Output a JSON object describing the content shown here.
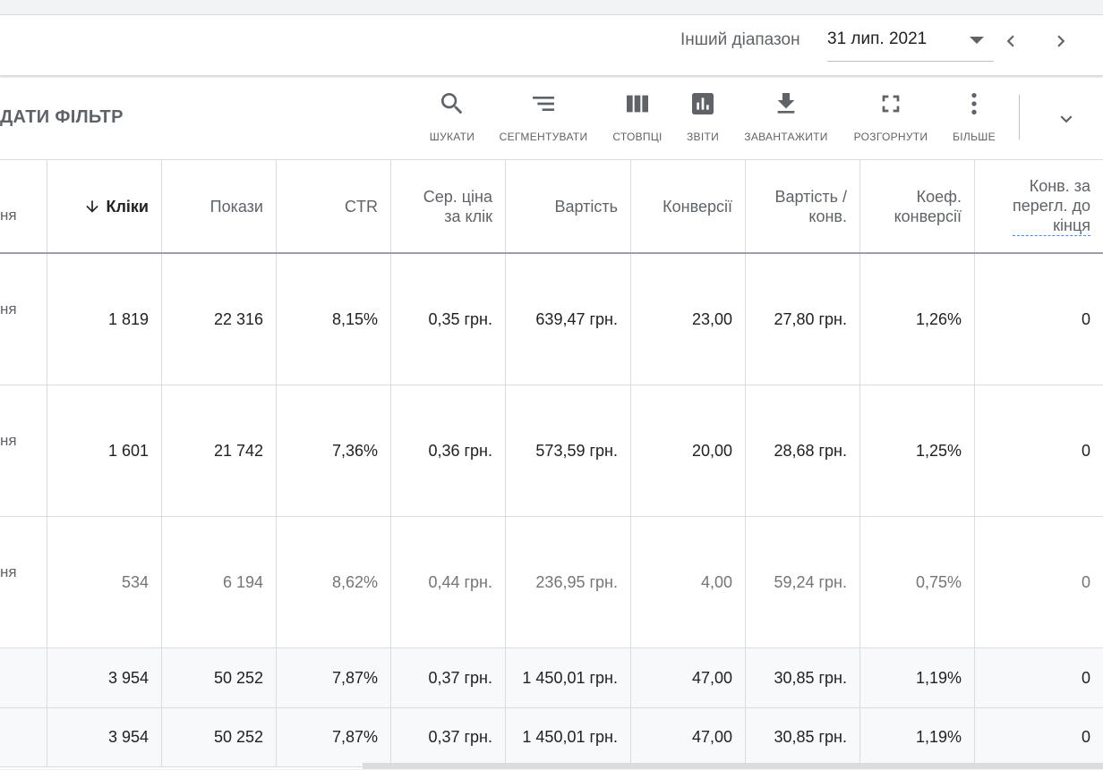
{
  "datebar": {
    "range_label": "Інший діапазон",
    "date_value": "31 лип. 2021"
  },
  "toolbar": {
    "filter_label": "ДАТИ ФІЛЬТР",
    "search": "ШУКАТИ",
    "segment": "СЕГМЕНТУВАТИ",
    "columns": "СТОВПЦІ",
    "reports": "ЗВІТИ",
    "download": "ЗАВАНТАЖИТИ",
    "expand": "РОЗГОРНУТИ",
    "more": "БІЛЬШЕ"
  },
  "table": {
    "headers": {
      "first": "ня",
      "clicks": "Кліки",
      "impressions": "Покази",
      "ctr": "CTR",
      "avg_cpc_1": "Сер. ціна",
      "avg_cpc_2": "за клік",
      "cost": "Вартість",
      "conversions": "Конверсії",
      "cost_conv_1": "Вартість /",
      "cost_conv_2": "конв.",
      "conv_rate_1": "Коеф.",
      "conv_rate_2": "конверсії",
      "view_conv_1": "Конв. за",
      "view_conv_2": "перегл. до",
      "view_conv_3": "кінця"
    },
    "rows": [
      {
        "first": "ня",
        "clicks": "1 819",
        "impressions": "22 316",
        "ctr": "8,15%",
        "avg_cpc": "0,35 грн.",
        "cost": "639,47 грн.",
        "conversions": "23,00",
        "cost_conv": "27,80 грн.",
        "conv_rate": "1,26%",
        "view_conv": "0"
      },
      {
        "first": "ня",
        "clicks": "1 601",
        "impressions": "21 742",
        "ctr": "7,36%",
        "avg_cpc": "0,36 грн.",
        "cost": "573,59 грн.",
        "conversions": "20,00",
        "cost_conv": "28,68 грн.",
        "conv_rate": "1,25%",
        "view_conv": "0"
      },
      {
        "first": "ня",
        "clicks": "534",
        "impressions": "6 194",
        "ctr": "8,62%",
        "avg_cpc": "0,44 грн.",
        "cost": "236,95 грн.",
        "conversions": "4,00",
        "cost_conv": "59,24 грн.",
        "conv_rate": "0,75%",
        "view_conv": "0"
      }
    ],
    "totals": [
      {
        "clicks": "3 954",
        "impressions": "50 252",
        "ctr": "7,87%",
        "avg_cpc": "0,37 грн.",
        "cost": "1 450,01 грн.",
        "conversions": "47,00",
        "cost_conv": "30,85 грн.",
        "conv_rate": "1,19%",
        "view_conv": "0"
      },
      {
        "clicks": "3 954",
        "impressions": "50 252",
        "ctr": "7,87%",
        "avg_cpc": "0,37 грн.",
        "cost": "1 450,01 грн.",
        "conversions": "47,00",
        "cost_conv": "30,85 грн.",
        "conv_rate": "1,19%",
        "view_conv": "0"
      }
    ]
  }
}
